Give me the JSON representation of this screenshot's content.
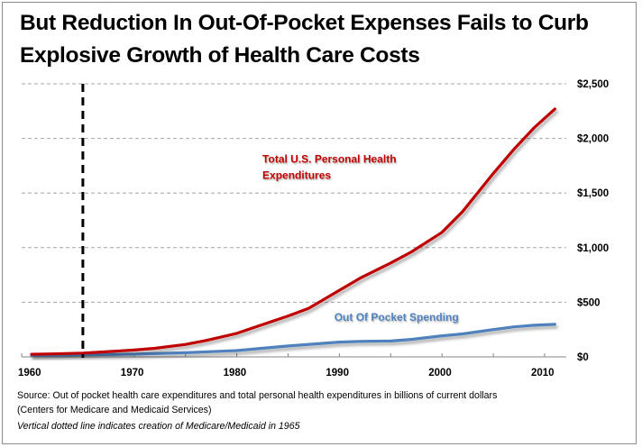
{
  "chart_data": {
    "type": "line",
    "title": "But Reduction In Out-Of-Pocket Expenses Fails to Curb Explosive Growth of Health Care Costs",
    "xlabel": "",
    "ylabel": "",
    "xlim": [
      1960,
      2012
    ],
    "ylim": [
      0,
      2500
    ],
    "x_ticks": [
      1960,
      1970,
      1980,
      1990,
      2000,
      2010
    ],
    "x_tick_labels": [
      "1960",
      "1970",
      "1980",
      "1990",
      "2000",
      "2010"
    ],
    "y_ticks": [
      0,
      500,
      1000,
      1500,
      2000,
      2500
    ],
    "y_tick_labels": [
      "$0",
      "$500",
      "$1,000",
      "$1,500",
      "$2,000",
      "$2,500"
    ],
    "y_axis_side": "right",
    "grid": "horizontal dashed",
    "series": [
      {
        "name": "Total U.S. Personal Health Expenditures",
        "color": "#c00000",
        "x": [
          1960,
          1962,
          1965,
          1967,
          1970,
          1972,
          1975,
          1977,
          1980,
          1982,
          1985,
          1987,
          1990,
          1992,
          1995,
          1997,
          2000,
          2002,
          2005,
          2007,
          2009,
          2011
        ],
        "values": [
          24,
          27,
          35,
          45,
          63,
          78,
          114,
          150,
          215,
          280,
          375,
          445,
          610,
          720,
          860,
          960,
          1140,
          1330,
          1680,
          1900,
          2100,
          2270
        ]
      },
      {
        "name": "Out Of Pocket Spending",
        "color": "#4f81bd",
        "x": [
          1960,
          1965,
          1970,
          1972,
          1975,
          1980,
          1985,
          1990,
          1992,
          1995,
          1997,
          2000,
          2002,
          2005,
          2007,
          2009,
          2011
        ],
        "values": [
          13,
          19,
          25,
          30,
          38,
          58,
          100,
          135,
          142,
          145,
          160,
          193,
          210,
          250,
          275,
          290,
          298
        ]
      }
    ],
    "annotations": [
      {
        "text_line1": "Total U.S. Personal Health",
        "text_line2": "Expenditures",
        "color": "#c00000",
        "anchor_x": 1982.5,
        "anchor_y": 1780
      },
      {
        "text": "Out Of Pocket Spending",
        "color": "#4f81bd",
        "anchor_x": 1989.5,
        "anchor_y": 330
      }
    ],
    "reference_line": {
      "x": 1965,
      "style": "dashed",
      "color": "#000000",
      "meaning": "creation of Medicare/Medicaid"
    }
  },
  "source_line1": "Source: Out of pocket health care expenditures and total  personal health expenditures in  billions of current dollars",
  "source_line2": "(Centers for Medicare and Medicaid Services)",
  "note": "Vertical  dotted line indicates creation  of Medicare/Medicaid  in 1965"
}
